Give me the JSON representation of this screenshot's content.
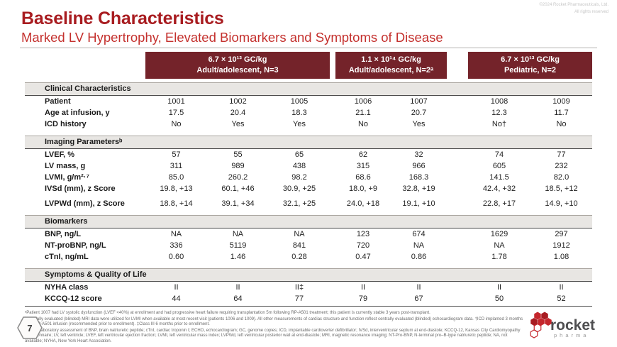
{
  "slide": {
    "copyright_line1": "©2024 Rocket Pharmaceuticals, Ltd.",
    "copyright_line2": "All rights reserved",
    "page_number": "7"
  },
  "header": {
    "title": "Baseline Characteristics",
    "subtitle": "Marked LV Hypertrophy, Elevated Biomarkers and Symptoms of Disease"
  },
  "colors": {
    "maroon_header": "#74232a",
    "title_red": "#a81c20",
    "subtitle_red": "#c4312e",
    "section_band_gray": "#e8e6e3",
    "logo_red": "#c5262c"
  },
  "table": {
    "dose_groups": [
      {
        "dose": "6.7 × 10¹³ GC/kg",
        "population": "Adult/adolescent, N=3"
      },
      {
        "dose": "1.1 × 10¹⁴  GC/kg",
        "population": "Adult/adolescent, N=2ᵃ"
      },
      {
        "dose": "6.7 × 10¹³ GC/kg",
        "population": "Pediatric, N=2"
      }
    ],
    "sections": [
      {
        "title": "Clinical Characteristics",
        "rows": [
          {
            "label": "Patient",
            "values": [
              "1001",
              "1002",
              "1005",
              "1006",
              "1007",
              "1008",
              "1009"
            ]
          },
          {
            "label": "Age at infusion, y",
            "values": [
              "17.5",
              "20.4",
              "18.3",
              "21.1",
              "20.7",
              "12.3",
              "11.7"
            ]
          },
          {
            "label": "ICD history",
            "values": [
              "No",
              "Yes",
              "Yes",
              "No",
              "Yes",
              "No†",
              "No"
            ]
          }
        ]
      },
      {
        "title": "Imaging Parametersᵇ",
        "rows": [
          {
            "label": "LVEF, %",
            "values": [
              "57",
              "55",
              "65",
              "62",
              "32",
              "74",
              "77"
            ]
          },
          {
            "label": "LV mass, g",
            "values": [
              "311",
              "989",
              "438",
              "315",
              "966",
              "605",
              "232"
            ]
          },
          {
            "label": "LVMI, g/m²·⁷",
            "values": [
              "85.0",
              "260.2",
              "98.2",
              "68.6",
              "168.3",
              "141.5",
              "82.0"
            ]
          },
          {
            "label": "IVSd (mm), z Score",
            "values": [
              "19.8, +13",
              "60.1, +46",
              "30.9, +25",
              "18.0, +9",
              "32.8, +19",
              "42.4, +32",
              "18.5, +12"
            ]
          },
          {
            "label": "LVPWd (mm), z Score",
            "gap_above": true,
            "values": [
              "18.8, +14",
              "39.1, +34",
              "32.1, +25",
              "24.0, +18",
              "19.1, +10",
              "22.8, +17",
              "14.9, +10"
            ]
          }
        ]
      },
      {
        "title": "Biomarkers",
        "rows": [
          {
            "label": "BNP, ng/L",
            "values": [
              "NA",
              "NA",
              "NA",
              "123",
              "674",
              "1629",
              "297"
            ]
          },
          {
            "label": "NT-proBNP, ng/L",
            "values": [
              "336",
              "5119",
              "841",
              "720",
              "NA",
              "NA",
              "1912"
            ]
          },
          {
            "label": "cTnI, ng/mL",
            "values": [
              "0.60",
              "1.46",
              "0.28",
              "0.47",
              "0.86",
              "1.78",
              "1.08"
            ]
          }
        ]
      },
      {
        "title": "Symptoms & Quality of Life",
        "rows": [
          {
            "label": "NYHA class",
            "values": [
              "II",
              "II",
              "II‡",
              "II",
              "II",
              "II",
              "II"
            ]
          },
          {
            "label": "KCCQ-12 score",
            "values": [
              "44",
              "64",
              "77",
              "79",
              "67",
              "50",
              "52"
            ]
          }
        ]
      }
    ]
  },
  "footnotes": [
    "ᵃPatient 1007 had LV systolic dysfunction (LVEF <40%) at enrollment and had progressive heart failure requiring transplantation 5m following RP-A501 treatment; this patient is currently stable 3 years post-transplant.",
    "ᵇCentrally evaluated (blinded) MRI data were utilized for LVMI when available at most recent visit (patients 1006 and 1009). All other measurements of cardiac structure and function reflect centrally evaluated (blinded) echocardiogram data.  †ICD implanted 3 months after RP-A501 infusion (recommended prior to enrollment).  ‡Class III 6 months prior to enrollment.",
    "Central laboratory assessment of BNP, brain natriuretic peptide; cTnI, cardiac troponin I; ECHO, echocardiogram; GC, genome copies; ICD, implantable cardioverter defibrillator; IVSd, interventricular septum at end-diastole; KCCQ-12, Kansas City Cardiomyopathy Questionnaire; LV, left ventricle; LVEF, left ventricular ejection fraction; LVMI, left ventricular mass index; LVPWd, left ventricular posterior wall at end-diastole; MRI, magnetic resonance imaging; NT-Pro-BNP, N-terminal pro–B-type natriuretic peptide; NA, not available; NYHA, New York Heart Association."
  ],
  "logo": {
    "name": "rocket",
    "sub": "pharma"
  }
}
